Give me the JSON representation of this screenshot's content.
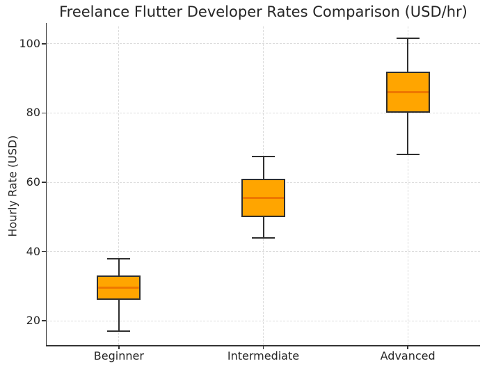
{
  "chart_data": {
    "type": "boxplot",
    "title": "Freelance Flutter Developer Rates Comparison (USD/hr)",
    "xlabel": "",
    "ylabel": "Hourly Rate (USD)",
    "categories": [
      "Beginner",
      "Intermediate",
      "Advanced"
    ],
    "series": [
      {
        "name": "Beginner",
        "whisker_low": 17,
        "q1": 26,
        "median": 29.5,
        "q3": 33,
        "whisker_high": 38
      },
      {
        "name": "Intermediate",
        "whisker_low": 44,
        "q1": 50,
        "median": 55.5,
        "q3": 61,
        "whisker_high": 67.5
      },
      {
        "name": "Advanced",
        "whisker_low": 68,
        "q1": 80,
        "median": 86,
        "q3": 92,
        "whisker_high": 101.5
      }
    ],
    "yticks": [
      20,
      40,
      60,
      80,
      100
    ],
    "ylim": [
      13,
      105
    ],
    "grid": {
      "visible": true,
      "linestyle": "dashed",
      "which": "both"
    },
    "legend": {
      "visible": false
    },
    "colors": {
      "box_fill": "#ffa500",
      "box_edge": "#2e2e2e",
      "median": "#ee7700",
      "whisker": "#2e2e2e",
      "grid": "#dcdcdc",
      "spine": "#333333",
      "text": "#262626"
    }
  }
}
